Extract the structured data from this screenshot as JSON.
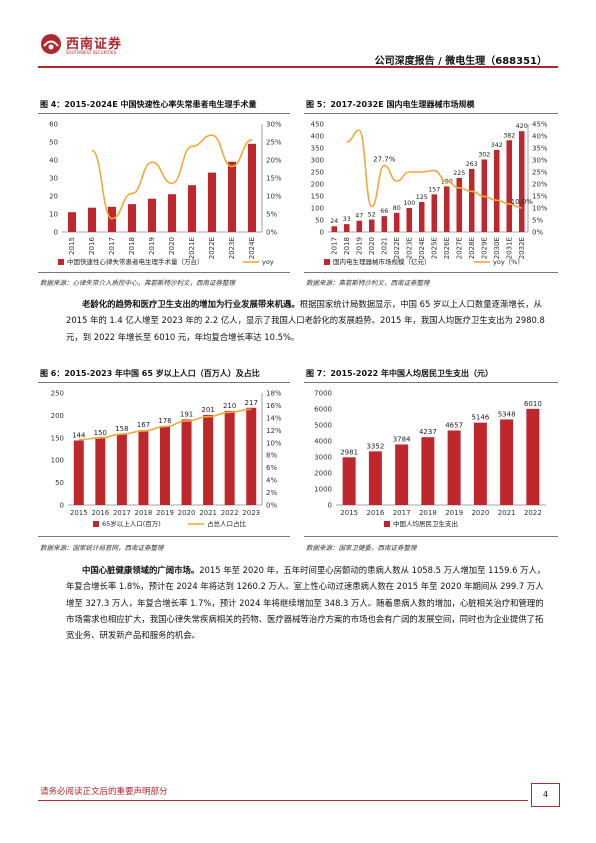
{
  "header": {
    "logo_text": "西南证券",
    "logo_sub": "SOUTHWEST SECURITIES",
    "title": "公司深度报告 / 微电生理（688351）"
  },
  "fig4": {
    "title": "图 4：2015-2024E 中国快速性心率失常患者电生理手术量",
    "source": "数据来源：心律失常介入质控中心，弗若斯特沙利文，西南证券整理"
  },
  "fig5": {
    "title": "图 5：2017-2032E 国内电生理器械市场规模",
    "source": "数据来源：弗若斯特沙利文，西南证券整理"
  },
  "fig6": {
    "title": "图 6：2015-2023 年中国 65 岁以上人口（百万人）及占比",
    "source": "数据来源：国家统计局官网，西南证券整理"
  },
  "fig7": {
    "title": "图 7：2015-2022 年中国人均居民卫生支出（元）",
    "source": "数据来源：国家卫健委，西南证券整理"
  },
  "para1": {
    "lead": "老龄化的趋势和医疗卫生支出的增加为行业发展带来机遇。",
    "body": "根据国家统计局数据显示，中国 65 岁以上人口数量逐渐增长，从 2015 年的 1.4 亿人增至 2023 年的 2.2 亿人，显示了我国人口老龄化的发展趋势。2015 年，我国人均医疗卫生支出为 2980.8 元，到 2022 年增长至 6010 元，年均复合增长率达 10.5%。"
  },
  "para2": {
    "lead": "中国心脏健康领域的广阔市场。",
    "body": "2015 年至 2020 年，五年时间里心房颤动的患病人数从 1058.5 万人增加至 1159.6 万人，年复合增长率 1.8%，预计在 2024 年将达到 1260.2 万人。室上性心动过速患病人数在 2015 年至 2020 年期间从 299.7 万人增至 327.3 万人，年复合增长率 1.7%，预计 2024 年将继续增加至 348.3 万人。随着患病人数的增加，心脏相关治疗和管理的市场需求也相应扩大，我国心律失常疾病相关的药物、医疗器械等治疗方案的市场也会有广阔的发展空间，同时也为企业提供了拓宽业务、研发新产品和服务的机会。"
  },
  "footer": {
    "text": "请务必阅读正文后的重要声明部分",
    "page": "4"
  },
  "colors": {
    "bar": "#c0272d",
    "line": "#f2a93b",
    "accent": "#b0272d"
  },
  "chart_data": [
    {
      "id": "fig4",
      "type": "bar",
      "categories": [
        "2015",
        "2016",
        "2017",
        "2018",
        "2019",
        "2020",
        "2021E",
        "2022E",
        "2023E",
        "2024E"
      ],
      "series": [
        {
          "name": "中国快速性心律失常患者电生理手术量（万台）",
          "values": [
            11,
            13.5,
            14,
            15.5,
            18.5,
            21,
            26,
            33,
            39,
            49
          ]
        },
        {
          "name": "yoy",
          "axis": "right",
          "values": [
            null,
            22.7,
            3.7,
            10.7,
            19.4,
            13.5,
            23.8,
            26.9,
            18.2,
            25.6
          ]
        }
      ],
      "ylim": [
        0,
        60
      ],
      "y2lim": [
        0,
        30
      ],
      "y2_unit": "%",
      "yticks": [
        0,
        10,
        20,
        30,
        40,
        50,
        60
      ],
      "y2ticks": [
        "0%",
        "5%",
        "10%",
        "15%",
        "20%",
        "25%",
        "30%"
      ]
    },
    {
      "id": "fig5",
      "type": "bar",
      "categories": [
        "2017",
        "2018",
        "2019",
        "2020",
        "2021",
        "2022E",
        "2023E",
        "2024E",
        "2025E",
        "2026E",
        "2027E",
        "2028E",
        "2029E",
        "2030E",
        "2031E",
        "2032E"
      ],
      "series": [
        {
          "name": "国内电生理器械市场规模（亿元）",
          "values": [
            24,
            33,
            47,
            52,
            66,
            80,
            100,
            125,
            157,
            190,
            225,
            263,
            302,
            342,
            382,
            420
          ]
        },
        {
          "name": "yoy（%）",
          "axis": "right",
          "values": [
            null,
            37.5,
            42.4,
            10.6,
            27.7,
            21.2,
            25.0,
            25.0,
            25.6,
            21.0,
            18.4,
            16.9,
            14.8,
            13.2,
            11.7,
            10.0
          ]
        }
      ],
      "labels": {
        "27.7%": "2021",
        "10.0%": "2032E"
      },
      "ylim": [
        0,
        450
      ],
      "y2lim": [
        0,
        45
      ],
      "yticks": [
        0,
        50,
        100,
        150,
        200,
        250,
        300,
        350,
        400,
        450
      ],
      "y2ticks": [
        "0%",
        "5%",
        "10%",
        "15%",
        "20%",
        "25%",
        "30%",
        "35%",
        "40%",
        "45%"
      ]
    },
    {
      "id": "fig6",
      "type": "bar",
      "categories": [
        "2015",
        "2016",
        "2017",
        "2018",
        "2019",
        "2020",
        "2021",
        "2022",
        "2023"
      ],
      "series": [
        {
          "name": "65岁以上人口(百万)",
          "values": [
            144,
            150,
            158,
            167,
            176,
            191,
            201,
            210,
            217
          ]
        },
        {
          "name": "占总人口占比",
          "axis": "right",
          "values": [
            10.5,
            10.8,
            11.4,
            11.9,
            12.6,
            13.5,
            14.2,
            14.9,
            15.4
          ]
        }
      ],
      "ylim": [
        0,
        250
      ],
      "y2lim": [
        0,
        18
      ],
      "yticks": [
        0,
        50,
        100,
        150,
        200,
        250
      ],
      "y2ticks": [
        "0%",
        "2%",
        "4%",
        "6%",
        "8%",
        "10%",
        "12%",
        "14%",
        "16%",
        "18%"
      ]
    },
    {
      "id": "fig7",
      "type": "bar",
      "categories": [
        "2015",
        "2016",
        "2017",
        "2018",
        "2019",
        "2020",
        "2021",
        "2022"
      ],
      "series": [
        {
          "name": "中国人均居民卫生支出",
          "values": [
            2981,
            3352,
            3784,
            4237,
            4657,
            5146,
            5348,
            6010
          ]
        }
      ],
      "ylim": [
        0,
        7000
      ],
      "yticks": [
        0,
        1000,
        2000,
        3000,
        4000,
        5000,
        6000,
        7000
      ]
    }
  ]
}
